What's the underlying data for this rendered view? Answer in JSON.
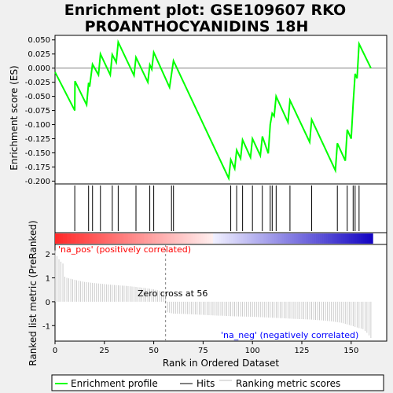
{
  "chart_data": {
    "type": "line",
    "title_line1": "Enrichment plot: GSE109607 RKO",
    "title_line2": "PROANTHOCYANIDINS 18H",
    "ylabel_es": "Enrichment score (ES)",
    "ylabel_rank": "Ranked list metric (PreRanked)",
    "xlabel": "Rank in Ordered Dataset",
    "xlim": [
      0,
      168
    ],
    "ylim_es": [
      -0.205,
      0.058
    ],
    "es_yticks": [
      0.05,
      0.025,
      0.0,
      -0.025,
      -0.05,
      -0.075,
      -0.1,
      -0.125,
      -0.15,
      -0.175,
      -0.2
    ],
    "es_ytick_labels": [
      "0.050",
      "0.025",
      "0.000",
      "-0.025",
      "-0.050",
      "-0.075",
      "-0.100",
      "-0.125",
      "-0.150",
      "-0.175",
      "-0.200"
    ],
    "xticks": [
      0,
      25,
      50,
      75,
      100,
      125,
      150
    ],
    "ylim_rank": [
      -1.65,
      2.4
    ],
    "rank_yticks": [
      2,
      1,
      0,
      -1
    ],
    "hits": [
      10,
      17,
      19,
      23,
      29,
      32,
      41,
      48,
      50,
      59,
      60,
      89,
      92,
      95,
      100,
      105,
      109,
      110,
      112,
      119,
      130,
      143,
      148,
      151,
      152,
      154
    ],
    "es_points": [
      [
        0,
        -0.007
      ],
      [
        10,
        -0.075
      ],
      [
        10.1,
        -0.023
      ],
      [
        16,
        -0.065
      ],
      [
        17,
        -0.026
      ],
      [
        17.5,
        -0.033
      ],
      [
        19,
        0.007
      ],
      [
        22,
        -0.012
      ],
      [
        23,
        0.025
      ],
      [
        28,
        -0.012
      ],
      [
        29,
        0.024
      ],
      [
        31,
        0.01
      ],
      [
        32,
        0.046
      ],
      [
        40,
        -0.013
      ],
      [
        41,
        0.019
      ],
      [
        47,
        -0.025
      ],
      [
        48,
        0.006
      ],
      [
        49,
        -0.002
      ],
      [
        50,
        0.028
      ],
      [
        58,
        -0.034
      ],
      [
        60,
        0.013
      ],
      [
        88,
        -0.195
      ],
      [
        89,
        -0.162
      ],
      [
        91,
        -0.178
      ],
      [
        92,
        -0.145
      ],
      [
        94,
        -0.16
      ],
      [
        95,
        -0.127
      ],
      [
        99,
        -0.158
      ],
      [
        100,
        -0.125
      ],
      [
        104,
        -0.155
      ],
      [
        105,
        -0.121
      ],
      [
        108,
        -0.151
      ],
      [
        109,
        -0.1
      ],
      [
        110,
        -0.08
      ],
      [
        111,
        -0.085
      ],
      [
        112,
        -0.05
      ],
      [
        118,
        -0.096
      ],
      [
        119,
        -0.057
      ],
      [
        129,
        -0.131
      ],
      [
        130,
        -0.091
      ],
      [
        142,
        -0.181
      ],
      [
        143,
        -0.133
      ],
      [
        147,
        -0.164
      ],
      [
        148,
        -0.109
      ],
      [
        150,
        -0.125
      ],
      [
        151,
        -0.063
      ],
      [
        152,
        -0.01
      ],
      [
        153,
        -0.018
      ],
      [
        154,
        0.043
      ],
      [
        160,
        0.0
      ]
    ],
    "rank_metric_samples": [
      [
        0,
        2.15
      ],
      [
        1,
        1.92
      ],
      [
        2,
        1.78
      ],
      [
        3,
        1.68
      ],
      [
        4,
        1.6
      ],
      [
        5,
        1.05
      ],
      [
        6,
        1.0
      ],
      [
        8,
        0.96
      ],
      [
        10,
        0.92
      ],
      [
        12,
        0.88
      ],
      [
        15,
        0.83
      ],
      [
        20,
        0.78
      ],
      [
        25,
        0.74
      ],
      [
        30,
        0.7
      ],
      [
        35,
        0.67
      ],
      [
        40,
        0.63
      ],
      [
        45,
        0.58
      ],
      [
        50,
        0.52
      ],
      [
        53,
        0.46
      ],
      [
        55,
        0.39
      ],
      [
        56,
        0.3
      ],
      [
        57,
        -0.44
      ],
      [
        60,
        -0.5
      ],
      [
        65,
        -0.51
      ],
      [
        70,
        -0.53
      ],
      [
        75,
        -0.55
      ],
      [
        80,
        -0.57
      ],
      [
        85,
        -0.59
      ],
      [
        90,
        -0.61
      ],
      [
        95,
        -0.62
      ],
      [
        100,
        -0.63
      ],
      [
        105,
        -0.65
      ],
      [
        110,
        -0.67
      ],
      [
        115,
        -0.69
      ],
      [
        120,
        -0.71
      ],
      [
        125,
        -0.73
      ],
      [
        130,
        -0.75
      ],
      [
        135,
        -0.78
      ],
      [
        140,
        -0.82
      ],
      [
        145,
        -0.88
      ],
      [
        148,
        -0.95
      ],
      [
        150,
        -1.0
      ],
      [
        153,
        -1.08
      ],
      [
        156,
        -1.15
      ],
      [
        158,
        -1.3
      ],
      [
        160,
        -1.52
      ]
    ],
    "zero_cross": 56,
    "annotations": {
      "pos": "'na_pos' (positively correlated)",
      "neg": "'na_neg' (negatively correlated)",
      "zero": "Zero cross at 56"
    },
    "legend": [
      {
        "label": "Enrichment profile",
        "color": "#00ff00"
      },
      {
        "label": "Hits",
        "color": "#000000"
      },
      {
        "label": "Ranking metric scores",
        "color": "#c0c0c0"
      }
    ],
    "colors": {
      "profile": "#00ff00",
      "hits": "#000000",
      "metric": "#c0c0c0",
      "pos_annot": "#ff0000",
      "neg_annot": "#0000ff",
      "zero_line": "#808080",
      "background": "#f0f0f0"
    }
  }
}
